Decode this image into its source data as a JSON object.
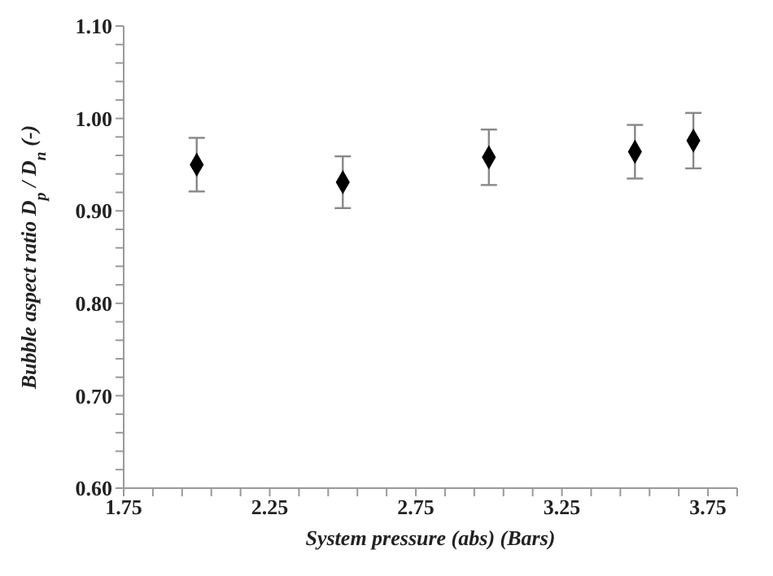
{
  "chart_data": {
    "type": "scatter",
    "xlabel": "System pressure  (abs)  (Bars)",
    "ylabel": "Bubble aspect ratio  D$_{p}$ / D$_{n}$ (-)",
    "x": [
      2.0,
      2.5,
      3.0,
      3.5,
      3.7
    ],
    "series": [
      {
        "color": "#000000",
        "values": [
          0.95,
          0.931,
          0.958,
          0.964,
          0.976
        ],
        "errors": [
          0.029,
          0.028,
          0.03,
          0.029,
          0.03
        ]
      }
    ],
    "xlim": [
      1.75,
      3.85
    ],
    "ylim": [
      0.6,
      1.1
    ],
    "xticks": [
      {
        "value": 1.75,
        "label": "1.75"
      },
      {
        "value": 1.85,
        "label": null
      },
      {
        "value": 1.95,
        "label": null
      },
      {
        "value": 2.05,
        "label": null
      },
      {
        "value": 2.15,
        "label": null
      },
      {
        "value": 2.25,
        "label": "2.25"
      },
      {
        "value": 2.35,
        "label": null
      },
      {
        "value": 2.45,
        "label": null
      },
      {
        "value": 2.55,
        "label": null
      },
      {
        "value": 2.65,
        "label": null
      },
      {
        "value": 2.75,
        "label": "2.75"
      },
      {
        "value": 2.85,
        "label": null
      },
      {
        "value": 2.95,
        "label": null
      },
      {
        "value": 3.05,
        "label": null
      },
      {
        "value": 3.15,
        "label": null
      },
      {
        "value": 3.25,
        "label": "3.25"
      },
      {
        "value": 3.35,
        "label": null
      },
      {
        "value": 3.45,
        "label": null
      },
      {
        "value": 3.55,
        "label": null
      },
      {
        "value": 3.65,
        "label": null
      },
      {
        "value": 3.75,
        "label": "3.75"
      },
      {
        "value": 3.85,
        "label": null
      }
    ],
    "yticks": [
      {
        "value": 0.6,
        "label": "0.60"
      },
      {
        "value": 0.62,
        "label": null
      },
      {
        "value": 0.64,
        "label": null
      },
      {
        "value": 0.66,
        "label": null
      },
      {
        "value": 0.68,
        "label": null
      },
      {
        "value": 0.7,
        "label": "0.70"
      },
      {
        "value": 0.72,
        "label": null
      },
      {
        "value": 0.74,
        "label": null
      },
      {
        "value": 0.76,
        "label": null
      },
      {
        "value": 0.78,
        "label": null
      },
      {
        "value": 0.8,
        "label": "0.80"
      },
      {
        "value": 0.82,
        "label": null
      },
      {
        "value": 0.84,
        "label": null
      },
      {
        "value": 0.86,
        "label": null
      },
      {
        "value": 0.88,
        "label": null
      },
      {
        "value": 0.9,
        "label": "0.90"
      },
      {
        "value": 0.92,
        "label": null
      },
      {
        "value": 0.94,
        "label": null
      },
      {
        "value": 0.96,
        "label": null
      },
      {
        "value": 0.98,
        "label": null
      },
      {
        "value": 1.0,
        "label": "1.00"
      },
      {
        "value": 1.02,
        "label": null
      },
      {
        "value": 1.04,
        "label": null
      },
      {
        "value": 1.06,
        "label": null
      },
      {
        "value": 1.08,
        "label": null
      },
      {
        "value": 1.1,
        "label": "1.10"
      }
    ],
    "marker": "diamond",
    "grid": false,
    "legend": false
  }
}
